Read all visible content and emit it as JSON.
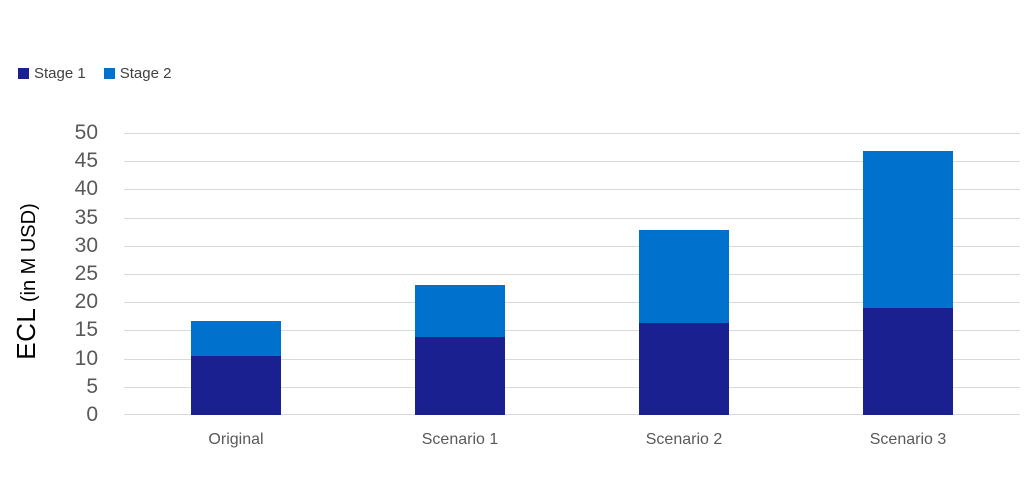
{
  "chart_data": {
    "type": "bar",
    "stacked": true,
    "categories": [
      "Original",
      "Scenario 1",
      "Scenario 2",
      "Scenario 3"
    ],
    "series": [
      {
        "name": "Stage 1",
        "color": "#1B2090",
        "values": [
          10.5,
          13.8,
          16.3,
          18.9
        ]
      },
      {
        "name": "Stage 2",
        "color": "#0072CE",
        "values": [
          6.2,
          9.2,
          16.5,
          27.9
        ]
      }
    ],
    "totals": [
      16.7,
      23.0,
      32.8,
      46.8
    ],
    "ylabel": "ECL (in M USD)",
    "ylabel_main": "ECL",
    "ylabel_unit": " (in M USD)",
    "ylim": [
      0,
      50
    ],
    "ytick_step": 5,
    "yticks": [
      0,
      5,
      10,
      15,
      20,
      25,
      30,
      35,
      40,
      45,
      50
    ],
    "grid": "horizontal",
    "legend_position": "top-left",
    "colors": {
      "stage1": "#1B2090",
      "stage2": "#0072CE",
      "gridline": "#D9D9D9",
      "tick_label": "#595959",
      "legend_label": "#404040",
      "axis_title": "#000000",
      "background": "#FFFFFF"
    }
  }
}
